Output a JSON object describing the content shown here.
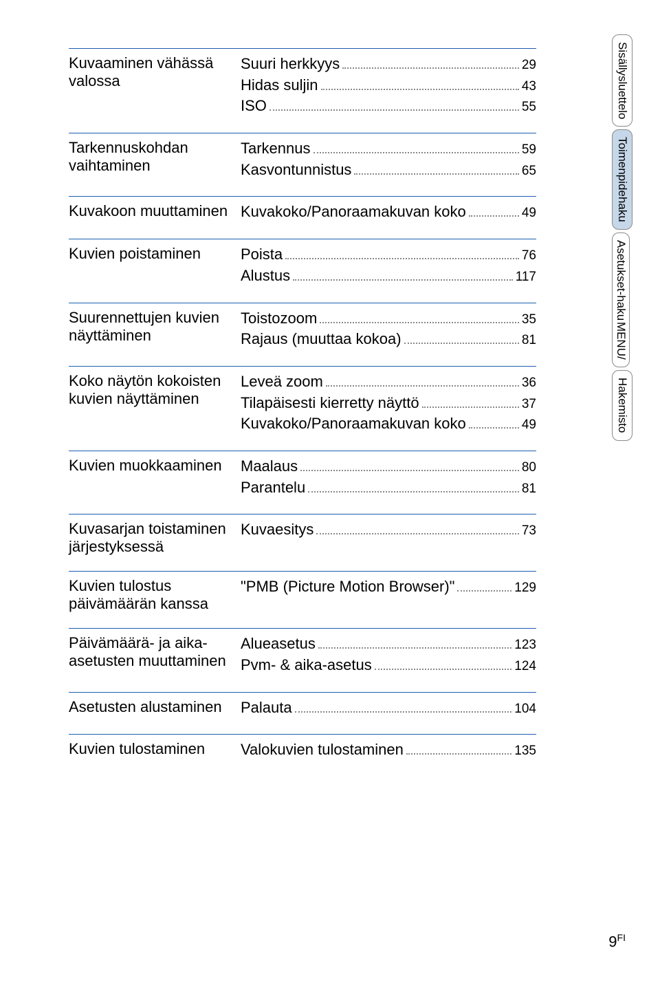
{
  "sections": [
    {
      "title": "Kuvaaminen vähässä valossa",
      "items": [
        {
          "label": "Suuri herkkyys",
          "page": "29"
        },
        {
          "label": "Hidas suljin",
          "page": "43"
        },
        {
          "label": "ISO",
          "page": "55"
        }
      ]
    },
    {
      "title": "Tarkennuskohdan vaihtaminen",
      "items": [
        {
          "label": "Tarkennus",
          "page": "59"
        },
        {
          "label": "Kasvontunnistus",
          "page": "65"
        }
      ]
    },
    {
      "title": "Kuvakoon muuttaminen",
      "items": [
        {
          "label": "Kuvakoko/Panoraamakuvan koko",
          "page": "49"
        }
      ]
    },
    {
      "title": "Kuvien poistaminen",
      "items": [
        {
          "label": "Poista",
          "page": "76"
        },
        {
          "label": "Alustus",
          "page": "117"
        }
      ]
    },
    {
      "title": "Suurennettujen kuvien näyttäminen",
      "items": [
        {
          "label": "Toistozoom",
          "page": "35"
        },
        {
          "label": "Rajaus (muuttaa kokoa)",
          "page": "81"
        }
      ]
    },
    {
      "title": "Koko näytön kokoisten kuvien näyttäminen",
      "items": [
        {
          "label": "Leveä zoom",
          "page": "36"
        },
        {
          "label": "Tilapäisesti kierretty näyttö",
          "page": "37"
        },
        {
          "label": "Kuvakoko/Panoraamakuvan koko",
          "page": "49"
        }
      ]
    },
    {
      "title": "Kuvien muokkaaminen",
      "items": [
        {
          "label": "Maalaus",
          "page": "80"
        },
        {
          "label": "Parantelu",
          "page": "81"
        }
      ]
    },
    {
      "title": "Kuvasarjan toistaminen järjestyksessä",
      "items": [
        {
          "label": "Kuvaesitys",
          "page": "73"
        }
      ]
    },
    {
      "title": "Kuvien tulostus päivämäärän kanssa",
      "items": [
        {
          "label": "\"PMB (Picture Motion Browser)\"",
          "page": "129"
        }
      ]
    },
    {
      "title": "Päivämäärä- ja aika-asetusten muuttaminen",
      "items": [
        {
          "label": "Alueasetus",
          "page": "123"
        },
        {
          "label": "Pvm- & aika-asetus",
          "page": "124"
        }
      ]
    },
    {
      "title": "Asetusten alustaminen",
      "items": [
        {
          "label": "Palauta",
          "page": "104"
        }
      ]
    },
    {
      "title": "Kuvien tulostaminen",
      "items": [
        {
          "label": "Valokuvien tulostaminen",
          "page": "135"
        }
      ]
    }
  ],
  "sidebar": {
    "tabs": [
      {
        "label": "Sisällysluettelo",
        "active": false
      },
      {
        "label": "Toimenpidehaku",
        "active": true
      },
      {
        "label_a": "MENU/",
        "label_b": "Asetukset-haku",
        "dual": true,
        "active": false
      },
      {
        "label": "Hakemisto",
        "active": false
      }
    ]
  },
  "page_number": "9",
  "page_suffix": "FI",
  "colors": {
    "rule": "#1a5db0",
    "tab_border": "#8a8a8a",
    "tab_active_bg": "#c5d7e8"
  },
  "font_sizes": {
    "body": 22,
    "page_small": 19,
    "tab": 17
  }
}
